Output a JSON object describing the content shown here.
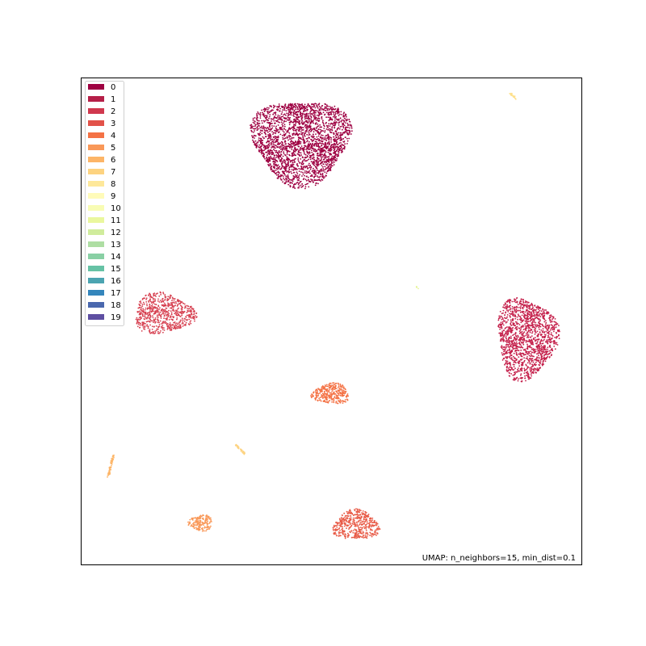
{
  "chart_data": {
    "type": "scatter",
    "title": "",
    "xlabel": "",
    "ylabel": "",
    "axes_visible": false,
    "annotation": "UMAP: n_neighbors=15, min_dist=0.1",
    "legend_position": "top-left",
    "legend": [
      {
        "label": "0",
        "color": "#9e0142"
      },
      {
        "label": "1",
        "color": "#b51f48"
      },
      {
        "label": "2",
        "color": "#d0384e"
      },
      {
        "label": "3",
        "color": "#e25249"
      },
      {
        "label": "4",
        "color": "#f47245"
      },
      {
        "label": "5",
        "color": "#f99858"
      },
      {
        "label": "6",
        "color": "#fdb567"
      },
      {
        "label": "7",
        "color": "#fdd380"
      },
      {
        "label": "8",
        "color": "#fee89a"
      },
      {
        "label": "9",
        "color": "#fffbb9"
      },
      {
        "label": "10",
        "color": "#f8fcb4"
      },
      {
        "label": "11",
        "color": "#eaf79e"
      },
      {
        "label": "12",
        "color": "#d0ec9c"
      },
      {
        "label": "13",
        "color": "#aedea3"
      },
      {
        "label": "14",
        "color": "#89d0a4"
      },
      {
        "label": "15",
        "color": "#66c2a5"
      },
      {
        "label": "16",
        "color": "#4ba4b1"
      },
      {
        "label": "17",
        "color": "#3486bc"
      },
      {
        "label": "18",
        "color": "#4a68ae"
      },
      {
        "label": "19",
        "color": "#5e4fa2"
      }
    ],
    "clusters": [
      {
        "label": "0",
        "color": "#9e0142",
        "shape": "blob",
        "center": [
          0.44,
          0.87
        ],
        "radius": [
          0.105,
          0.095
        ],
        "count": 2600
      },
      {
        "label": "1",
        "color": "#c41f4a",
        "shape": "blob",
        "center": [
          0.89,
          0.465
        ],
        "radius": [
          0.065,
          0.09
        ],
        "count": 1500
      },
      {
        "label": "2",
        "color": "#d63f4f",
        "shape": "blob",
        "center": [
          0.165,
          0.515
        ],
        "radius": [
          0.065,
          0.045
        ],
        "count": 700
      },
      {
        "label": "3",
        "color": "#e85b47",
        "shape": "blob",
        "center": [
          0.55,
          0.08
        ],
        "radius": [
          0.05,
          0.033
        ],
        "count": 500
      },
      {
        "label": "4",
        "color": "#f47245",
        "shape": "blob",
        "center": [
          0.5,
          0.35
        ],
        "radius": [
          0.04,
          0.023
        ],
        "count": 350
      },
      {
        "label": "5",
        "color": "#f99858",
        "shape": "blob",
        "center": [
          0.24,
          0.085
        ],
        "radius": [
          0.026,
          0.018
        ],
        "count": 180
      },
      {
        "label": "6",
        "color": "#fdb567",
        "shape": "streak",
        "from": [
          0.055,
          0.18
        ],
        "to": [
          0.065,
          0.225
        ],
        "count": 60
      },
      {
        "label": "7",
        "color": "#fdd380",
        "shape": "streak",
        "from": [
          0.31,
          0.245
        ],
        "to": [
          0.33,
          0.225
        ],
        "count": 40
      },
      {
        "label": "8",
        "color": "#fee08b",
        "shape": "streak",
        "from": [
          0.855,
          0.97
        ],
        "to": [
          0.87,
          0.955
        ],
        "count": 25
      },
      {
        "label": "9",
        "color": "#e6f598",
        "shape": "streak",
        "from": [
          0.67,
          0.57
        ],
        "to": [
          0.673,
          0.568
        ],
        "count": 6
      }
    ]
  }
}
